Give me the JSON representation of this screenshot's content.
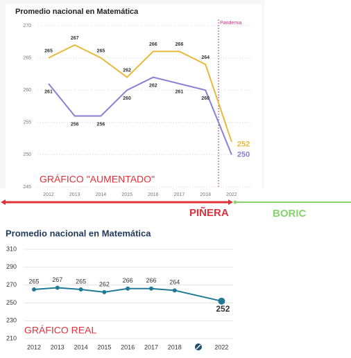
{
  "chart_data": [
    {
      "type": "line",
      "title": "Promedio nacional en Matemática",
      "categories": [
        "2012",
        "2013",
        "2014",
        "2015",
        "2016",
        "2017",
        "2018",
        "2022"
      ],
      "series": [
        {
          "color": "#e8b93a",
          "values": [
            265,
            267,
            265,
            262,
            266,
            266,
            264,
            252
          ]
        },
        {
          "color": "#8a7fd6",
          "values": [
            261,
            256,
            256,
            260,
            262,
            261,
            260,
            250
          ]
        }
      ],
      "ylim": [
        245,
        270
      ],
      "yticks": [
        245,
        250,
        255,
        260,
        265,
        270
      ],
      "grid": true,
      "annotation": "Pandemia"
    },
    {
      "type": "line",
      "title": "Promedio nacional en Matemática",
      "categories": [
        "2012",
        "2013",
        "2014",
        "2015",
        "2016",
        "2017",
        "2018",
        "2022"
      ],
      "series": [
        {
          "color": "#1f7a96",
          "values": [
            265,
            267,
            265,
            262,
            266,
            266,
            264,
            252
          ]
        }
      ],
      "ylim": [
        210,
        310
      ],
      "yticks": [
        210,
        230,
        250,
        270,
        290,
        310
      ],
      "grid": true
    }
  ],
  "annotations": {
    "top_chart": "GRÁFICO \"AUMENTADO\"",
    "left_period": "PIÑERA",
    "right_period": "BORIC",
    "bottom_chart": "GRÁFICO REAL"
  }
}
